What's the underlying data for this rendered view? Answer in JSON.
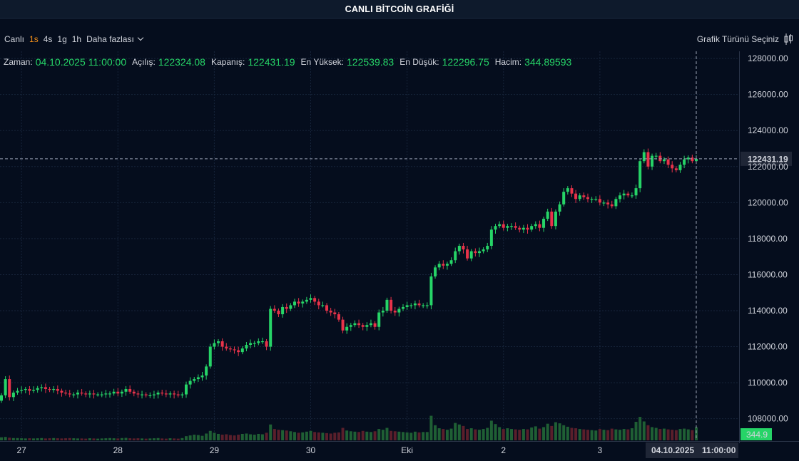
{
  "header": {
    "title": "CANLI BİTCOİN GRAFİĞİ"
  },
  "toolbar": {
    "timeframes": [
      "Canlı",
      "1s",
      "4s",
      "1g",
      "1h"
    ],
    "active_timeframe": "1s",
    "more_label": "Daha fazlası",
    "chart_type_label": "Grafik Türünü Seçiniz"
  },
  "ohlc": {
    "time_label": "Zaman:",
    "time_value": "04.10.2025 11:00:00",
    "open_label": "Açılış:",
    "open_value": "122324.08",
    "close_label": "Kapanış:",
    "close_value": "122431.19",
    "high_label": "En Yüksek:",
    "high_value": "122539.83",
    "low_label": "En Düşük:",
    "low_value": "122296.75",
    "volume_label": "Hacim:",
    "volume_value": "344.89593"
  },
  "crosshair": {
    "price_label": "122431.19",
    "volume_label": "344.9",
    "date_label": "04.10.2025",
    "time_label": "11:00:00"
  },
  "colors": {
    "up": "#26d467",
    "down": "#e8334a",
    "background": "#050d1d",
    "accent": "#f7931a"
  },
  "chart_data": {
    "type": "candlestick",
    "title": "",
    "xlabel": "",
    "ylabel": "",
    "ylim": [
      106800,
      128400
    ],
    "y_ticks": [
      108000,
      110000,
      112000,
      114000,
      116000,
      118000,
      120000,
      122000,
      124000,
      126000,
      128000
    ],
    "y_tick_labels": [
      "108000.00",
      "110000.00",
      "112000.00",
      "114000.00",
      "116000.00",
      "118000.00",
      "120000.00",
      "122000.00",
      "124000.00",
      "126000.00",
      "128000.00"
    ],
    "x_tick_labels": [
      "27",
      "28",
      "29",
      "30",
      "Eki",
      "2",
      "3"
    ],
    "x_tick_index": [
      5,
      29,
      53,
      77,
      101,
      125,
      149
    ],
    "grid": true,
    "close": [
      109300,
      110200,
      109200,
      109450,
      109550,
      109600,
      109650,
      109550,
      109600,
      109700,
      109750,
      109650,
      109600,
      109650,
      109550,
      109450,
      109400,
      109350,
      109350,
      109450,
      109400,
      109350,
      109400,
      109350,
      109350,
      109350,
      109400,
      109400,
      109500,
      109400,
      109500,
      109650,
      109500,
      109400,
      109350,
      109350,
      109300,
      109300,
      109350,
      109450,
      109400,
      109350,
      109400,
      109350,
      109300,
      109350,
      109900,
      110100,
      110200,
      110300,
      110400,
      110900,
      112000,
      112200,
      112300,
      112000,
      111900,
      111850,
      111800,
      111700,
      111900,
      112100,
      112200,
      112200,
      112300,
      112300,
      112000,
      114100,
      114000,
      113800,
      114200,
      114100,
      114300,
      114500,
      114400,
      114500,
      114600,
      114700,
      114500,
      114300,
      114300,
      114000,
      113900,
      113800,
      113500,
      112900,
      113100,
      113200,
      113300,
      113200,
      113100,
      113200,
      113300,
      113100,
      113900,
      114000,
      114600,
      114000,
      113900,
      114100,
      114200,
      114300,
      114300,
      114400,
      114300,
      114300,
      114300,
      115900,
      116400,
      116600,
      116500,
      116600,
      116800,
      117300,
      117600,
      117400,
      116900,
      117300,
      117200,
      117300,
      117400,
      117600,
      118500,
      118700,
      118800,
      118600,
      118700,
      118700,
      118600,
      118500,
      118600,
      118500,
      118700,
      118800,
      118600,
      119100,
      119500,
      118700,
      119500,
      119900,
      120600,
      120800,
      120500,
      120200,
      120400,
      120300,
      120200,
      120200,
      120200,
      120000,
      120000,
      119900,
      119800,
      120200,
      120400,
      120500,
      120400,
      120400,
      120800,
      122300,
      122800,
      122000,
      122600,
      122600,
      122300,
      122400,
      122100,
      121900,
      121800,
      122100,
      122400,
      122500,
      122300,
      122431.19
    ],
    "volume": [
      80,
      90,
      70,
      60,
      60,
      55,
      50,
      55,
      50,
      55,
      60,
      50,
      55,
      60,
      55,
      50,
      55,
      60,
      55,
      50,
      50,
      45,
      55,
      50,
      45,
      50,
      55,
      60,
      55,
      50,
      60,
      65,
      55,
      50,
      55,
      50,
      45,
      50,
      55,
      60,
      50,
      45,
      55,
      50,
      45,
      60,
      110,
      130,
      150,
      140,
      120,
      180,
      250,
      200,
      170,
      150,
      160,
      140,
      130,
      150,
      170,
      180,
      160,
      150,
      170,
      160,
      200,
      420,
      300,
      280,
      270,
      260,
      240,
      220,
      200,
      210,
      230,
      250,
      220,
      210,
      200,
      190,
      180,
      200,
      210,
      330,
      260,
      240,
      230,
      220,
      250,
      230,
      220,
      240,
      300,
      280,
      330,
      250,
      240,
      230,
      220,
      210,
      200,
      230,
      210,
      220,
      220,
      650,
      400,
      320,
      300,
      280,
      310,
      460,
      420,
      380,
      300,
      320,
      290,
      280,
      300,
      330,
      520,
      430,
      350,
      300,
      320,
      300,
      290,
      280,
      300,
      290,
      340,
      370,
      310,
      350,
      440,
      380,
      480,
      450,
      400,
      360,
      330,
      320,
      300,
      290,
      280,
      270,
      260,
      300,
      280,
      270,
      310,
      290,
      280,
      300,
      290,
      320,
      490,
      620,
      500,
      400,
      350,
      330,
      300,
      310,
      290,
      280,
      270,
      300,
      310,
      290,
      270,
      344.9
    ],
    "volume_max": 660
  }
}
